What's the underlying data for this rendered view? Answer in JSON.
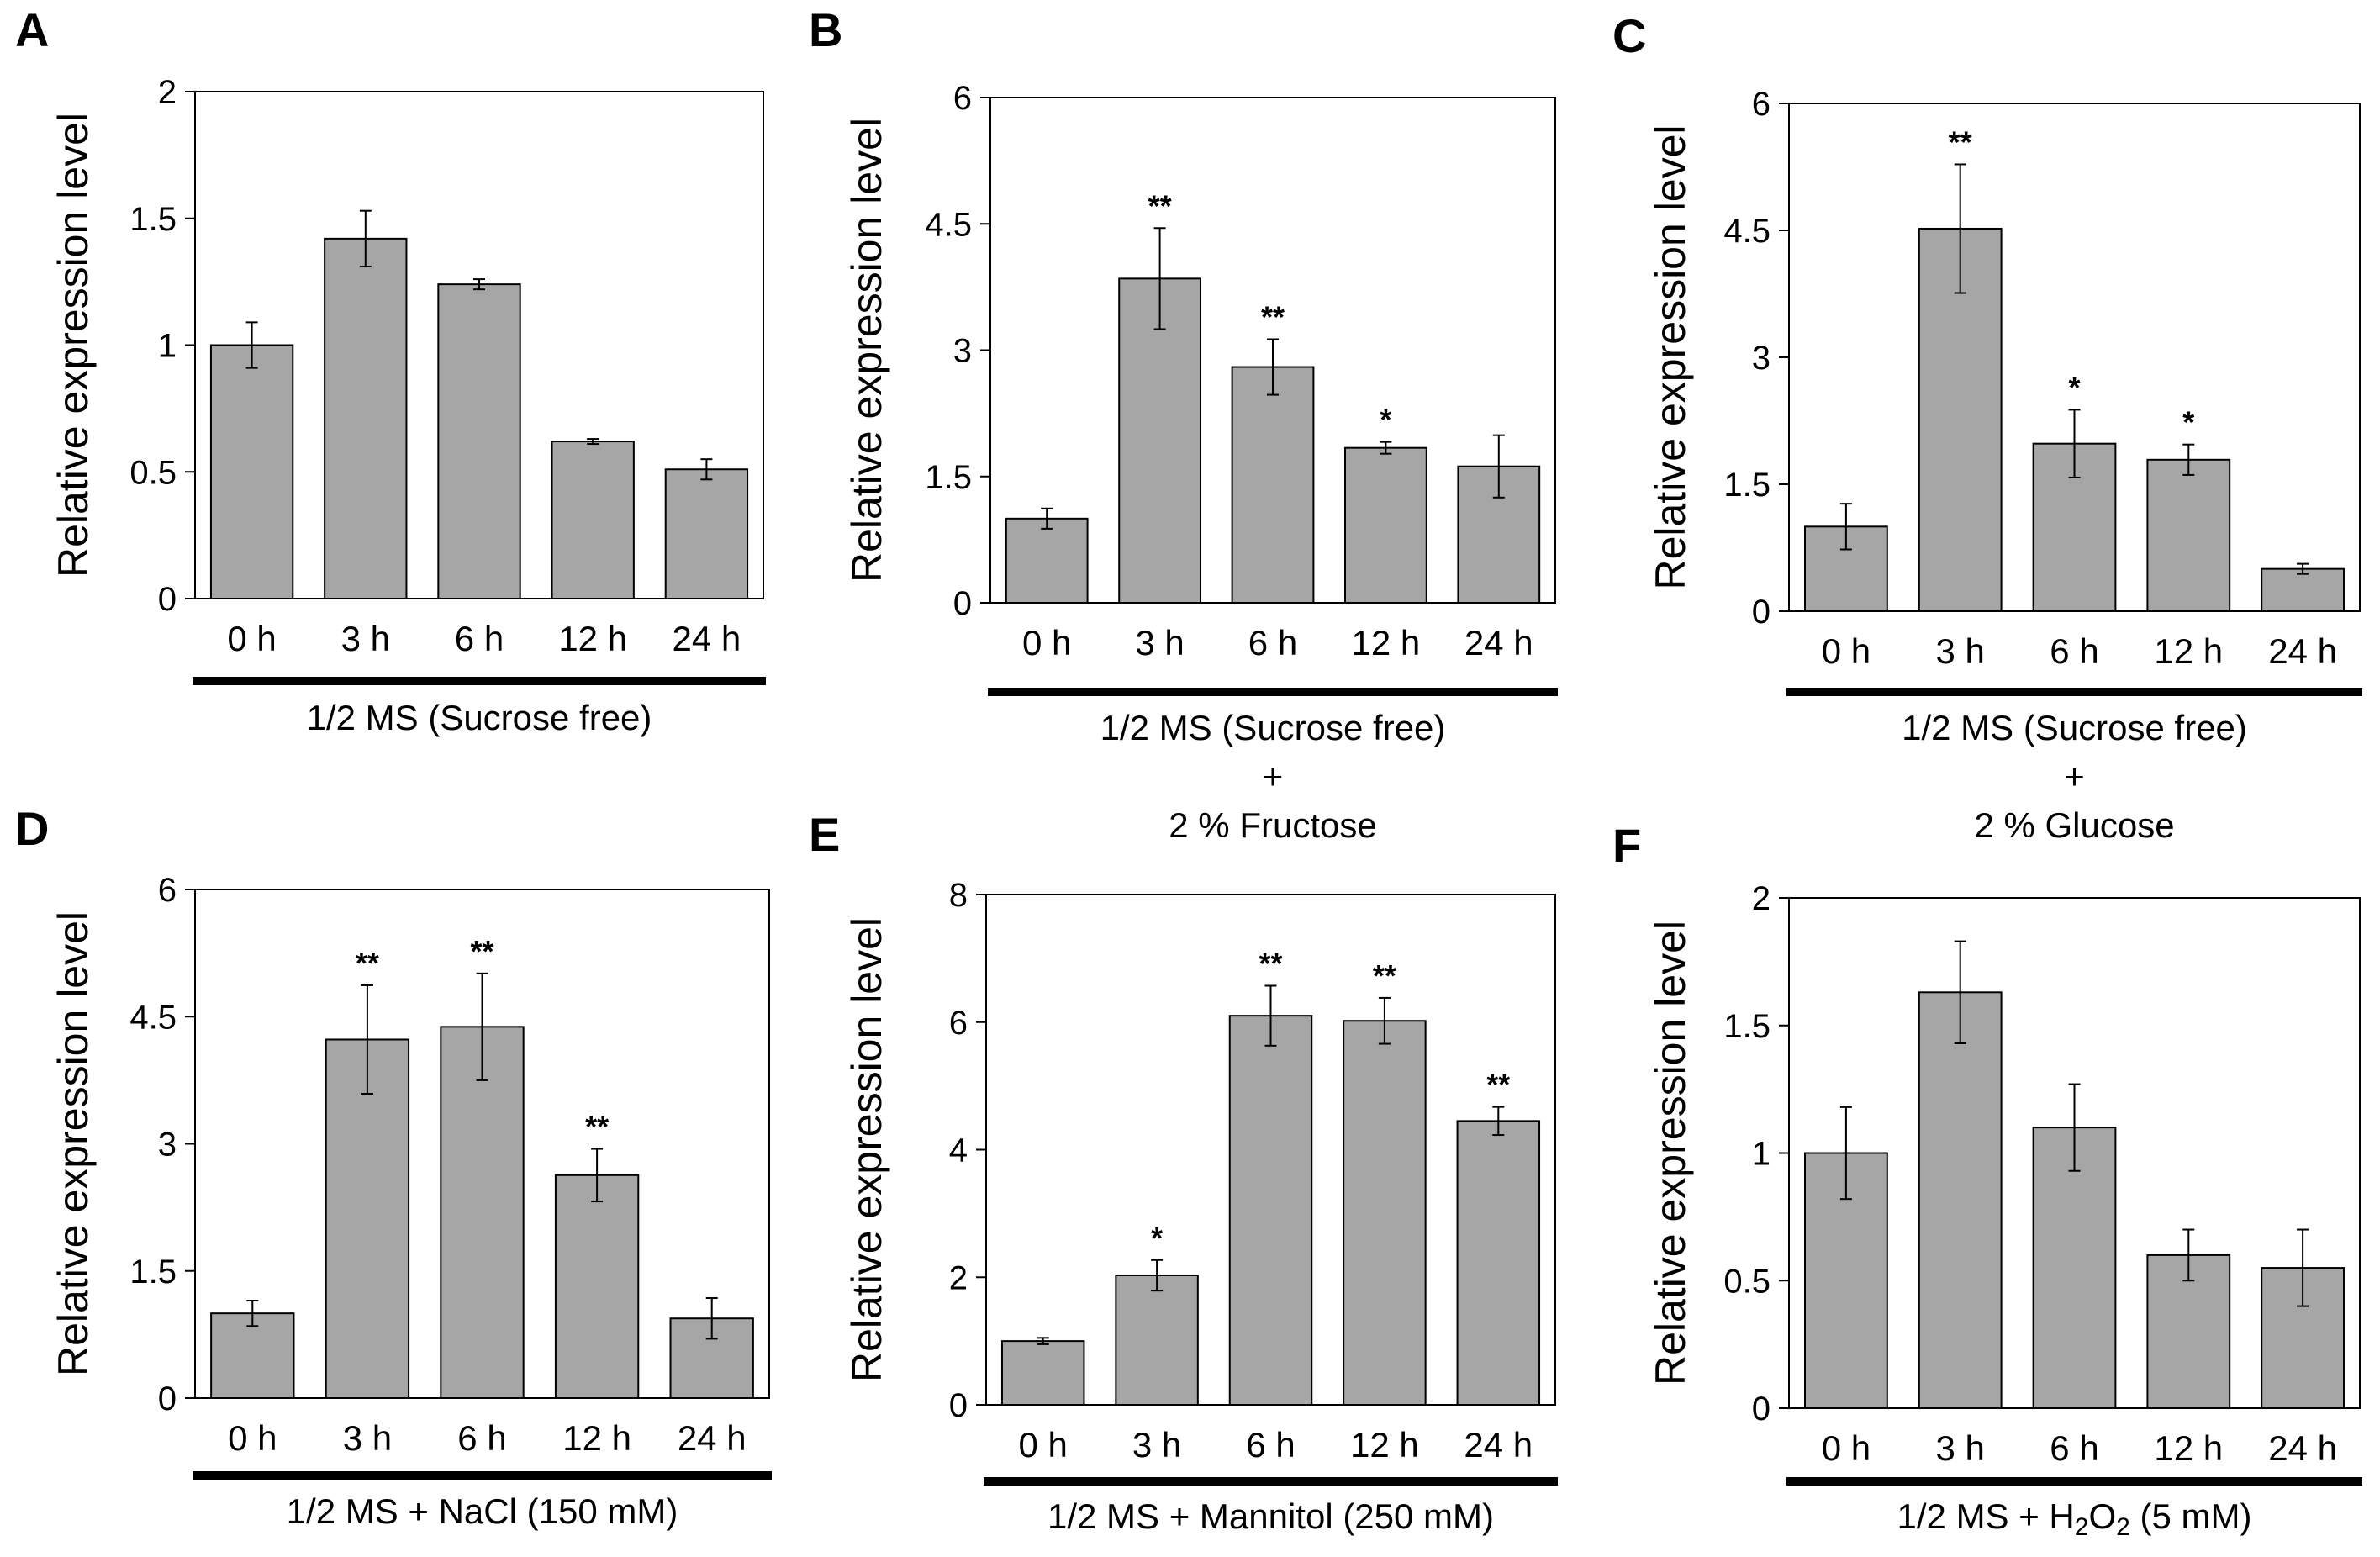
{
  "figure": {
    "panels": [
      {
        "letter": "A",
        "condition_lines": [
          "1/2 MS (Sucrose free)"
        ]
      },
      {
        "letter": "B",
        "condition_lines": [
          "1/2 MS (Sucrose free)",
          "+",
          "2 % Fructose"
        ]
      },
      {
        "letter": "C",
        "condition_lines": [
          "1/2 MS (Sucrose free)",
          "+",
          "2 % Glucose"
        ]
      },
      {
        "letter": "D",
        "condition_lines": [
          "1/2 MS + NaCl (150 mM)"
        ]
      },
      {
        "letter": "E",
        "condition_lines": [
          "1/2 MS + Mannitol (250 mM)"
        ]
      },
      {
        "letter": "F",
        "condition_lines": [
          "1/2 MS + H2O2 (5 mM)"
        ]
      }
    ]
  },
  "chart_data": [
    {
      "type": "bar",
      "panel": "A",
      "categories": [
        "0 h",
        "3 h",
        "6 h",
        "12 h",
        "24 h"
      ],
      "values": [
        1.0,
        1.42,
        1.24,
        0.62,
        0.51
      ],
      "errors": [
        0.09,
        0.11,
        0.02,
        0.01,
        0.04
      ],
      "significance": [
        "",
        "",
        "",
        "",
        ""
      ],
      "ylabel": "Relative expression level",
      "ylim": [
        0,
        2
      ],
      "yticks": [
        0,
        0.5,
        1,
        1.5,
        2
      ],
      "ytick_labels": [
        "0",
        "0.5",
        "1",
        "1.5",
        "2"
      ],
      "xlabel": "1/2 MS (Sucrose free)"
    },
    {
      "type": "bar",
      "panel": "B",
      "categories": [
        "0 h",
        "3 h",
        "6 h",
        "12 h",
        "24 h"
      ],
      "values": [
        1.0,
        3.85,
        2.8,
        1.84,
        1.62
      ],
      "errors": [
        0.12,
        0.6,
        0.33,
        0.07,
        0.37
      ],
      "significance": [
        "",
        "**",
        "**",
        "*",
        ""
      ],
      "ylabel": "Relative expression level",
      "ylim": [
        0,
        6
      ],
      "yticks": [
        0,
        1.5,
        3,
        4.5,
        6
      ],
      "ytick_labels": [
        "0",
        "1.5",
        "3",
        "4.5",
        "6"
      ],
      "xlabel": "1/2 MS (Sucrose free) + 2 % Fructose"
    },
    {
      "type": "bar",
      "panel": "C",
      "categories": [
        "0 h",
        "3 h",
        "6 h",
        "12 h",
        "24 h"
      ],
      "values": [
        1.0,
        4.52,
        1.98,
        1.79,
        0.5
      ],
      "errors": [
        0.27,
        0.76,
        0.4,
        0.18,
        0.06
      ],
      "significance": [
        "",
        "**",
        "*",
        "*",
        ""
      ],
      "ylabel": "Relative expression level",
      "ylim": [
        0,
        6
      ],
      "yticks": [
        0,
        1.5,
        3,
        4.5,
        6
      ],
      "ytick_labels": [
        "0",
        "1.5",
        "3",
        "4.5",
        "6"
      ],
      "xlabel": "1/2 MS (Sucrose free) + 2 % Glucose"
    },
    {
      "type": "bar",
      "panel": "D",
      "categories": [
        "0 h",
        "3 h",
        "6 h",
        "12 h",
        "24 h"
      ],
      "values": [
        1.0,
        4.23,
        4.38,
        2.63,
        0.94
      ],
      "errors": [
        0.15,
        0.64,
        0.63,
        0.31,
        0.24
      ],
      "significance": [
        "",
        "**",
        "**",
        "**",
        ""
      ],
      "ylabel": "Relative expression level",
      "ylim": [
        0,
        6
      ],
      "yticks": [
        0,
        1.5,
        3,
        4.5,
        6
      ],
      "ytick_labels": [
        "0",
        "1.5",
        "3",
        "4.5",
        "6"
      ],
      "xlabel": "1/2 MS + NaCl (150 mM)"
    },
    {
      "type": "bar",
      "panel": "E",
      "categories": [
        "0 h",
        "3 h",
        "6 h",
        "12 h",
        "24 h"
      ],
      "values": [
        1.0,
        2.03,
        6.1,
        6.02,
        4.45
      ],
      "errors": [
        0.05,
        0.24,
        0.47,
        0.36,
        0.22
      ],
      "significance": [
        "",
        "*",
        "**",
        "**",
        "**"
      ],
      "ylabel": "Relative expression level",
      "ylim": [
        0,
        8
      ],
      "yticks": [
        0,
        2,
        4,
        6,
        8
      ],
      "ytick_labels": [
        "0",
        "2",
        "4",
        "6",
        "8"
      ],
      "xlabel": "1/2 MS + Mannitol (250 mM)"
    },
    {
      "type": "bar",
      "panel": "F",
      "categories": [
        "0 h",
        "3 h",
        "6 h",
        "12 h",
        "24 h"
      ],
      "values": [
        1.0,
        1.63,
        1.1,
        0.6,
        0.55
      ],
      "errors": [
        0.18,
        0.2,
        0.17,
        0.1,
        0.15
      ],
      "significance": [
        "",
        "",
        "",
        "",
        ""
      ],
      "ylabel": "Relative expression level",
      "ylim": [
        0,
        2
      ],
      "yticks": [
        0,
        0.5,
        1,
        1.5,
        2
      ],
      "ytick_labels": [
        "0",
        "0.5",
        "1",
        "1.5",
        "2"
      ],
      "xlabel": "1/2 MS + H2O2 (5 mM)"
    }
  ]
}
